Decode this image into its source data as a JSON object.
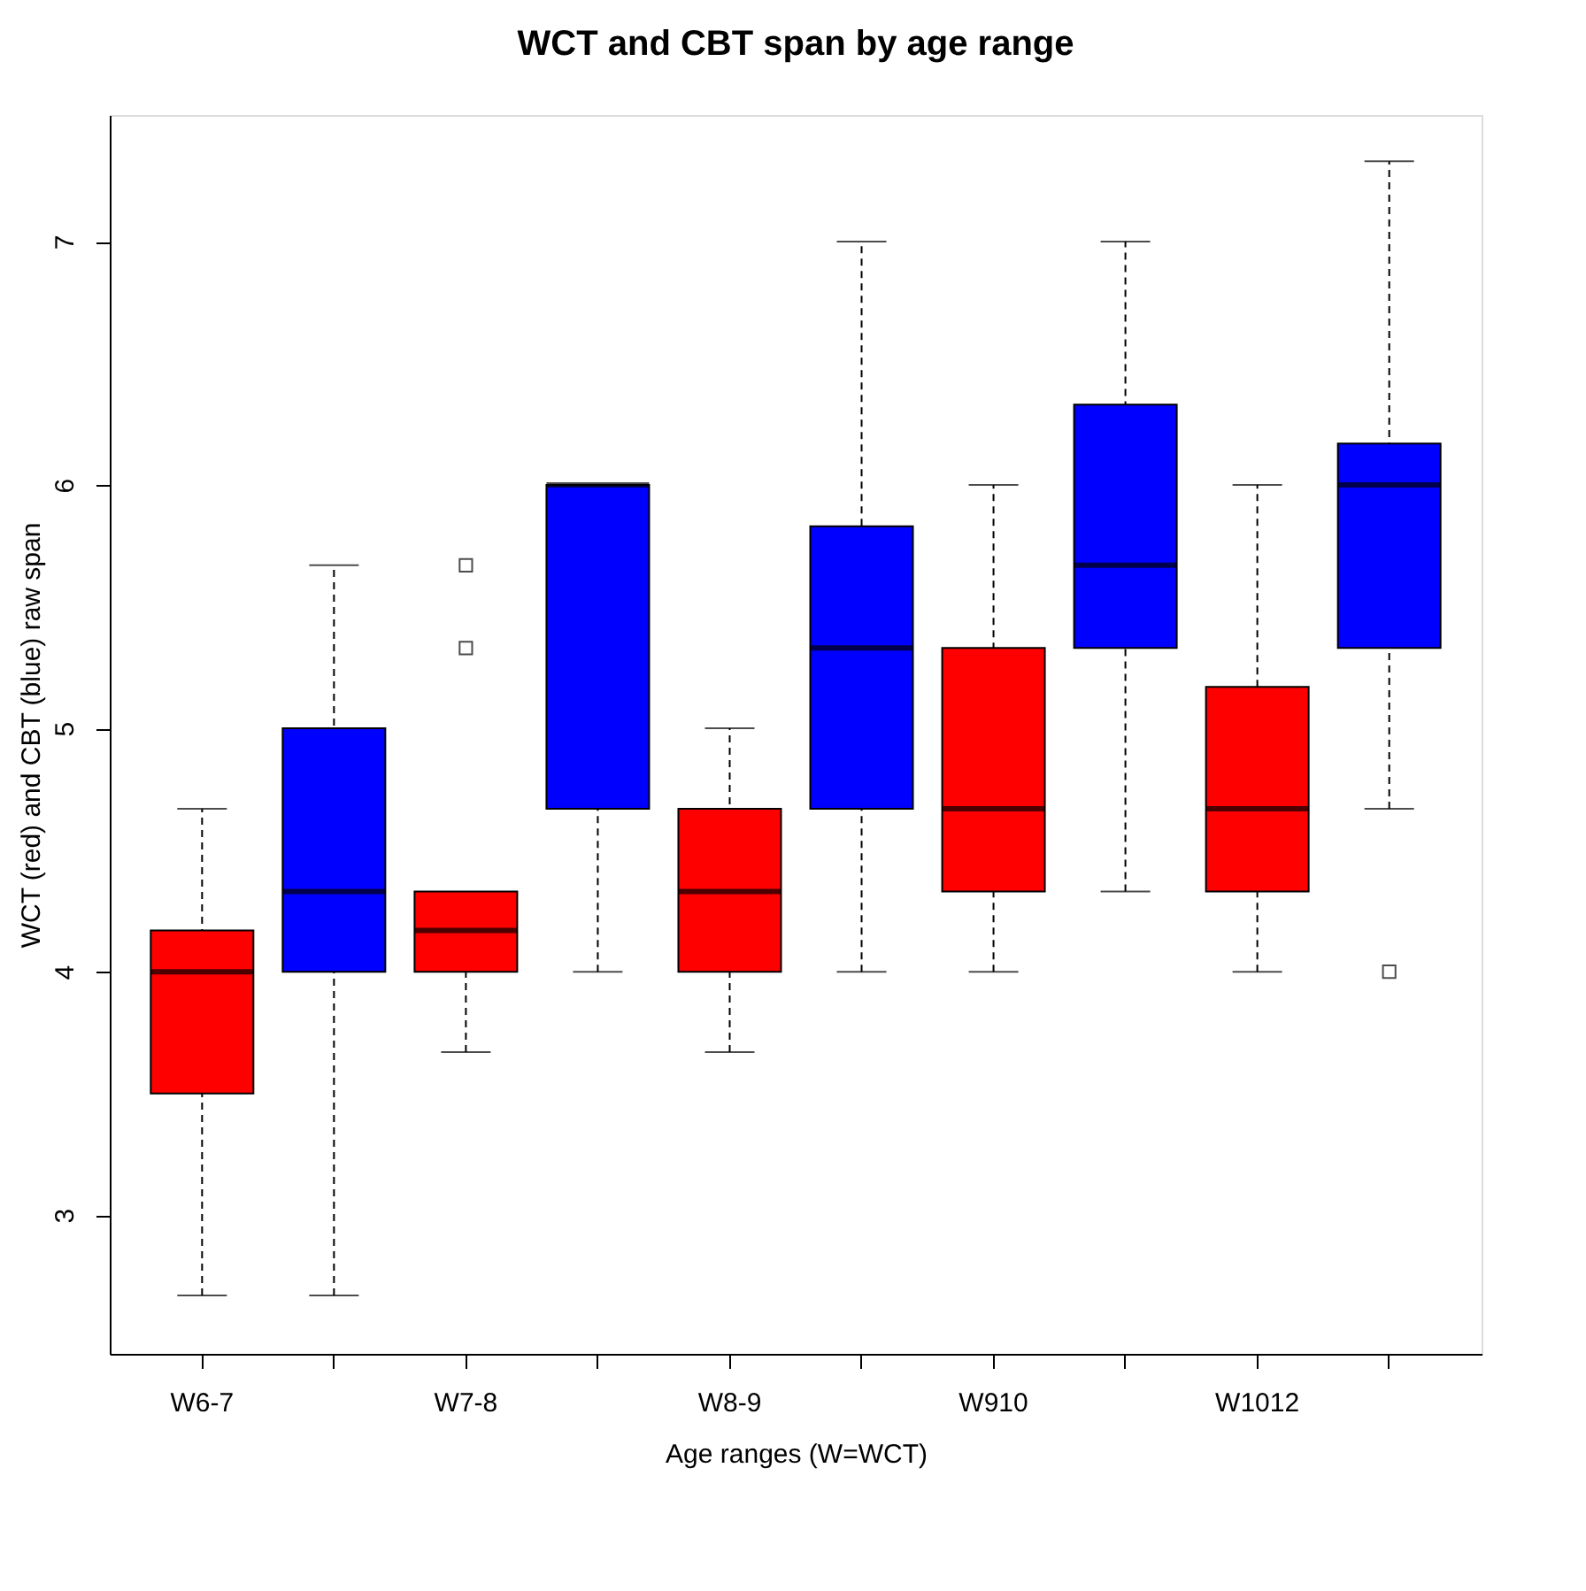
{
  "chart_data": {
    "type": "box",
    "title": "WCT and CBT span by age range",
    "xlabel": "Age ranges (W=WCT)",
    "ylabel": "WCT (red) and CBT (blue) raw span",
    "categories": [
      "W6-7",
      null,
      "W7-8",
      null,
      "W8-9",
      null,
      "W910",
      null,
      "W1012",
      null
    ],
    "colors": [
      "#ff0000",
      "#0000ff",
      "#ff0000",
      "#0000ff",
      "#ff0000",
      "#0000ff",
      "#ff0000",
      "#0000ff",
      "#ff0000",
      "#0000ff"
    ],
    "boxes": [
      {
        "low": 2.67,
        "q1": 3.5,
        "median": 4,
        "q3": 4.17,
        "high": 4.67
      },
      {
        "low": 2.67,
        "q1": 4,
        "median": 4.33,
        "q3": 5,
        "high": 5.67
      },
      {
        "low": 3.67,
        "q1": 4,
        "median": 4.17,
        "q3": 4.33,
        "high": 4.33,
        "outliers": [
          5.33,
          5.67
        ]
      },
      {
        "low": 4,
        "q1": 4.67,
        "median": 6,
        "q3": 6,
        "high": 6
      },
      {
        "low": 3.67,
        "q1": 4,
        "median": 4.33,
        "q3": 4.67,
        "high": 5
      },
      {
        "low": 4,
        "q1": 4.67,
        "median": 5.33,
        "q3": 5.83,
        "high": 7
      },
      {
        "low": 4,
        "q1": 4.33,
        "median": 4.67,
        "q3": 5.33,
        "high": 6
      },
      {
        "low": 4.33,
        "q1": 5.33,
        "median": 5.67,
        "q3": 6.33,
        "high": 7
      },
      {
        "low": 4,
        "q1": 4.33,
        "median": 4.67,
        "q3": 5.17,
        "high": 6
      },
      {
        "low": 4.67,
        "q1": 5.33,
        "median": 6,
        "q3": 6.17,
        "high": 7.33,
        "outliers": [
          4
        ]
      }
    ],
    "ylim": [
      2.43,
      7.52
    ],
    "yticks": [
      3,
      4,
      5,
      6,
      7
    ],
    "grid": false
  }
}
